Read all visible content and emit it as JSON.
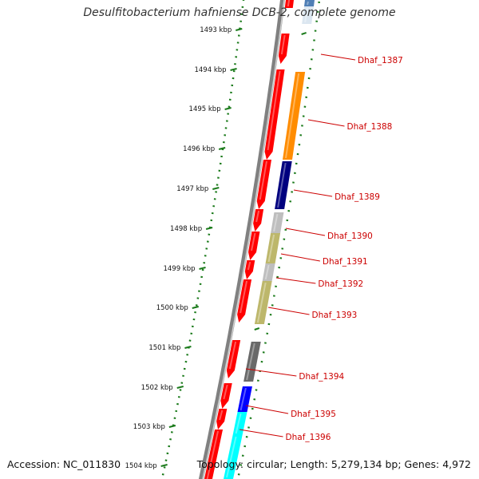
{
  "title": "Desulfitobacterium hafniense DCB-2, complete genome",
  "accession": "Accession: NC_011830",
  "topology": "Topology: circular; Length: 5,279,134 bp; Genes: 4,972",
  "ticks": [
    {
      "label": "1493 kbp"
    },
    {
      "label": "1494 kbp"
    },
    {
      "label": "1495 kbp"
    },
    {
      "label": "1496 kbp"
    },
    {
      "label": "1497 kbp"
    },
    {
      "label": "1498 kbp"
    },
    {
      "label": "1499 kbp"
    },
    {
      "label": "1500 kbp"
    },
    {
      "label": "1501 kbp"
    },
    {
      "label": "1502 kbp"
    },
    {
      "label": "1503 kbp"
    },
    {
      "label": "1504 kbp"
    }
  ],
  "genes": [
    {
      "name": "Dhaf_1387",
      "color": "#ff8c00"
    },
    {
      "name": "Dhaf_1388",
      "color": "#ff8c00"
    },
    {
      "name": "Dhaf_1389",
      "color": "#00007f"
    },
    {
      "name": "Dhaf_1390",
      "color": "#bebebe"
    },
    {
      "name": "Dhaf_1391",
      "color": "#bdb76b"
    },
    {
      "name": "Dhaf_1392",
      "color": "#bebebe"
    },
    {
      "name": "Dhaf_1393",
      "color": "#bdb76b"
    },
    {
      "name": "Dhaf_1394",
      "color": "#696969"
    },
    {
      "name": "Dhaf_1395",
      "color": "#0000ff"
    },
    {
      "name": "Dhaf_1396",
      "color": "#00ffff"
    }
  ],
  "colors": {
    "backbone": "#808080",
    "cds": "#ff0000",
    "tick": "#1a7a1a",
    "label": "#cc0000",
    "pointer": "#cc0000"
  }
}
